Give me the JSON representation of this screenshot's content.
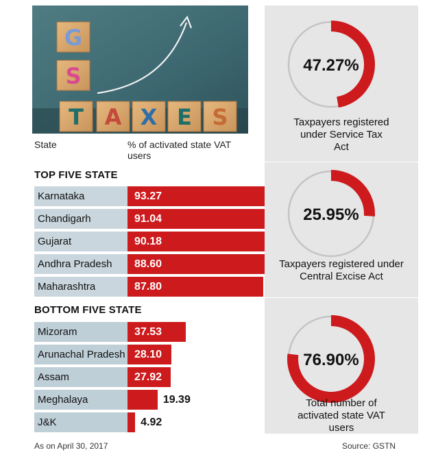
{
  "image_blocks": [
    "G",
    "S",
    "T",
    "A",
    "X",
    "E",
    "S"
  ],
  "headers": {
    "state": "State",
    "pct": "% of activated state VAT users"
  },
  "top_title": "TOP FIVE STATE",
  "bottom_title": "BOTTOM FIVE STATE",
  "chart_data": [
    {
      "type": "bar",
      "orientation": "horizontal",
      "title": "TOP FIVE STATE",
      "categories": [
        "Karnataka",
        "Chandigarh",
        "Gujarat",
        "Andhra Pradesh",
        "Maharashtra"
      ],
      "values": [
        93.27,
        91.04,
        90.18,
        88.6,
        87.8
      ],
      "labels": [
        "93.27",
        "91.04",
        "90.18",
        "88.60",
        "87.80"
      ],
      "xlim": [
        0,
        100
      ],
      "bar_color": "#cc1a1d"
    },
    {
      "type": "bar",
      "orientation": "horizontal",
      "title": "BOTTOM FIVE STATE",
      "categories": [
        "Mizoram",
        "Arunachal Pradesh",
        "Assam",
        "Meghalaya",
        "J&K"
      ],
      "values": [
        37.53,
        28.1,
        27.92,
        19.39,
        4.92
      ],
      "labels": [
        "37.53",
        "28.10",
        "27.92",
        "19.39",
        "4.92"
      ],
      "xlim": [
        0,
        100
      ],
      "bar_color": "#cc1a1d"
    },
    {
      "type": "pie",
      "style": "donut",
      "slices": [
        {
          "value": 47.27,
          "label": "47.27%",
          "caption": "Taxpayers registered under Service Tax Act"
        },
        {
          "value": 25.95,
          "label": "25.95%",
          "caption": "Taxpayers registered under Central Excise Act"
        },
        {
          "value": 76.9,
          "label": "76.90%",
          "caption": "Total number of activated state VAT users"
        }
      ],
      "colors": {
        "filled": "#cc1a1d",
        "track": "#c4c4c4"
      }
    }
  ],
  "footer": {
    "date": "As on April 30, 2017",
    "source": "Source: GSTN"
  }
}
